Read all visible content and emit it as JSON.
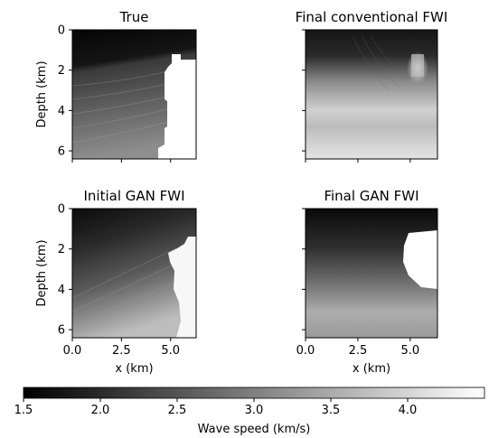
{
  "chart_data": {
    "type": "heatmap",
    "panels": [
      {
        "title": "True",
        "show_ylabel": true,
        "show_xlabel": false
      },
      {
        "title": "Final conventional FWI",
        "show_ylabel": false,
        "show_xlabel": false
      },
      {
        "title": "Initial GAN FWI",
        "show_ylabel": true,
        "show_xlabel": true
      },
      {
        "title": "Final GAN FWI",
        "show_ylabel": false,
        "show_xlabel": true
      }
    ],
    "xlabel": "x (km)",
    "ylabel": "Depth (km)",
    "xlim": [
      0,
      6.3
    ],
    "ylim": [
      6.4,
      0
    ],
    "xticks": [
      0.0,
      2.5,
      5.0
    ],
    "xtick_labels": [
      "0.0",
      "2.5",
      "5.0"
    ],
    "yticks": [
      0,
      2,
      4,
      6
    ],
    "ytick_labels": [
      "0",
      "2",
      "4",
      "6"
    ],
    "colorbar": {
      "label": "Wave speed (km/s)",
      "range": [
        1.5,
        4.5
      ],
      "ticks": [
        1.5,
        2.0,
        2.5,
        3.0,
        3.5,
        4.0
      ],
      "tick_labels": [
        "1.5",
        "2.0",
        "2.5",
        "3.0",
        "3.5",
        "4.0"
      ],
      "colormap": "gray"
    },
    "salt_body_speed_km_s": 4.5,
    "water_speed_km_s": 1.5
  }
}
